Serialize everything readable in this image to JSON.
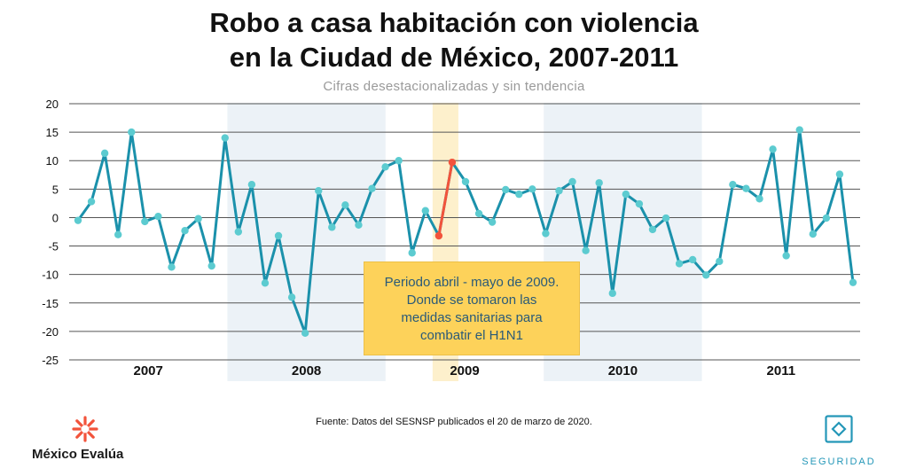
{
  "chart_data": {
    "type": "line",
    "title_line1": "Robo a casa habitación con violencia",
    "title_line2": "en la Ciudad de México, 2007-2011",
    "subtitle": "Cifras desestacionalizadas y sin tendencia",
    "ylim": [
      -25,
      20
    ],
    "yticks": [
      20,
      15,
      10,
      5,
      0,
      -5,
      -10,
      -15,
      -20,
      -25
    ],
    "years": [
      "2007",
      "2008",
      "2009",
      "2010",
      "2011"
    ],
    "shaded_years": [
      "2008",
      "2010"
    ],
    "highlight_period": {
      "start_index": 27,
      "end_index": 28,
      "label": "Periodo abril - mayo de 2009"
    },
    "series": [
      {
        "name": "Robo a casa habitación con violencia",
        "color": "#1b91ab",
        "highlight_color": "#f2533b",
        "values": [
          -0.5,
          2.8,
          11.3,
          -3.0,
          15.0,
          -0.7,
          0.2,
          -8.7,
          -2.3,
          -0.2,
          -8.5,
          14.0,
          -2.5,
          5.8,
          -11.5,
          -3.2,
          -14.0,
          -20.3,
          4.7,
          -1.7,
          2.2,
          -1.3,
          5.1,
          8.9,
          10.0,
          -6.2,
          1.2,
          -3.2,
          9.7,
          6.3,
          0.7,
          -0.8,
          4.9,
          4.1,
          5.0,
          -2.8,
          4.7,
          6.3,
          -5.8,
          6.1,
          -13.3,
          4.1,
          2.4,
          -2.1,
          -0.1,
          -8.1,
          -7.4,
          -10.1,
          -7.7,
          5.8,
          5.1,
          3.3,
          12.0,
          -6.7,
          15.4,
          -2.9,
          -0.1,
          7.6,
          -11.4
        ]
      }
    ],
    "annotation": [
      "Periodo abril - mayo de 2009.",
      "Donde se tomaron las",
      "medidas sanitarias para",
      "combatir el H1N1"
    ]
  },
  "source": "Fuente: Datos del SESNSP publicados el 20 de marzo de 2020.",
  "logo_left": {
    "name": "México Evalúa",
    "icon": "mexico-evalua-logo-icon",
    "color": "#f2533b"
  },
  "logo_right": {
    "name": "SEGURIDAD",
    "icon": "seguridad-diamond-icon",
    "color": "#2497b8"
  }
}
